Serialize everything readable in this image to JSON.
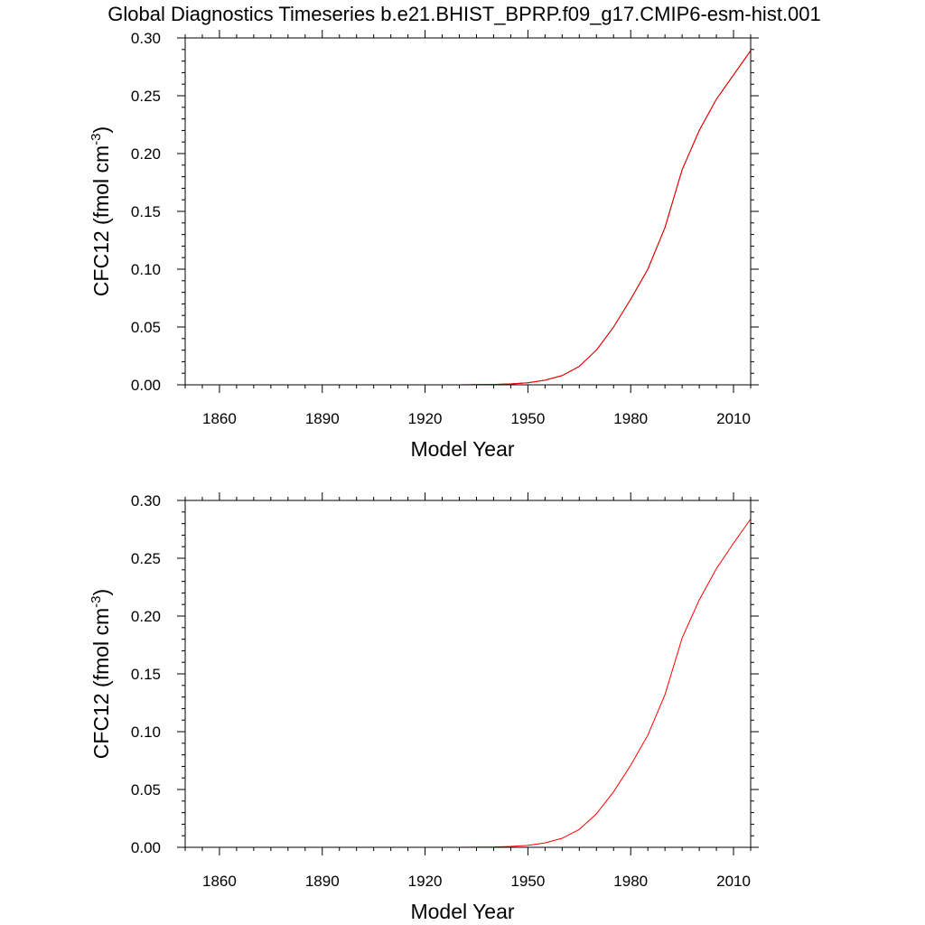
{
  "title": "Global Diagnostics Timeseries b.e21.BHIST_BPRP.f09_g17.CMIP6-esm-hist.001",
  "colors": {
    "series_black": "#000000",
    "series_red": "#ff0000"
  },
  "chart_data": [
    {
      "type": "line",
      "xlabel": "Model Year",
      "ylabel_main": "CFC12 (fmol cm",
      "ylabel_sup": "-3",
      "ylabel_close": ")",
      "xlim": [
        1850,
        2015
      ],
      "ylim": [
        0,
        0.3
      ],
      "xticks": [
        1860,
        1890,
        1920,
        1950,
        1980,
        2010
      ],
      "xtick_labels": [
        "1860",
        "1890",
        "1920",
        "1950",
        "1980",
        "2010"
      ],
      "yticks": [
        0,
        0.05,
        0.1,
        0.15,
        0.2,
        0.25,
        0.3
      ],
      "ytick_labels": [
        "0.00",
        "0.05",
        "0.10",
        "0.15",
        "0.20",
        "0.25",
        "0.30"
      ],
      "grid": false,
      "series": [
        {
          "color": "#000000",
          "x": [
            1850,
            1930,
            1940,
            1945,
            1950,
            1955,
            1960,
            1965,
            1970,
            1975,
            1980,
            1985,
            1990,
            1995,
            2000,
            2005,
            2010,
            2015
          ],
          "y": [
            0,
            0,
            0.0003,
            0.0008,
            0.0018,
            0.004,
            0.008,
            0.016,
            0.03,
            0.05,
            0.074,
            0.1,
            0.136,
            0.186,
            0.22,
            0.247,
            0.268,
            0.289
          ]
        },
        {
          "color": "#ff0000",
          "x": [
            1850,
            1930,
            1940,
            1945,
            1950,
            1955,
            1960,
            1965,
            1970,
            1975,
            1980,
            1985,
            1990,
            1995,
            2000,
            2005,
            2010,
            2015
          ],
          "y": [
            0,
            0,
            0.0003,
            0.0008,
            0.0018,
            0.004,
            0.008,
            0.016,
            0.03,
            0.05,
            0.074,
            0.1,
            0.136,
            0.186,
            0.22,
            0.247,
            0.268,
            0.289
          ]
        }
      ]
    },
    {
      "type": "line",
      "xlabel": "Model Year",
      "ylabel_main": "CFC12 (fmol cm",
      "ylabel_sup": "-3",
      "ylabel_close": ")",
      "xlim": [
        1850,
        2015
      ],
      "ylim": [
        0,
        0.3
      ],
      "xticks": [
        1860,
        1890,
        1920,
        1950,
        1980,
        2010
      ],
      "xtick_labels": [
        "1860",
        "1890",
        "1920",
        "1950",
        "1980",
        "2010"
      ],
      "yticks": [
        0,
        0.05,
        0.1,
        0.15,
        0.2,
        0.25,
        0.3
      ],
      "ytick_labels": [
        "0.00",
        "0.05",
        "0.10",
        "0.15",
        "0.20",
        "0.25",
        "0.30"
      ],
      "grid": false,
      "series": [
        {
          "color": "#ff0000",
          "x": [
            1850,
            1930,
            1940,
            1945,
            1950,
            1955,
            1960,
            1965,
            1970,
            1975,
            1980,
            1985,
            1990,
            1995,
            2000,
            2005,
            2010,
            2015
          ],
          "y": [
            0,
            0,
            0.0003,
            0.0008,
            0.0017,
            0.0038,
            0.0078,
            0.0155,
            0.029,
            0.048,
            0.071,
            0.097,
            0.132,
            0.181,
            0.214,
            0.241,
            0.263,
            0.284
          ]
        }
      ]
    }
  ]
}
